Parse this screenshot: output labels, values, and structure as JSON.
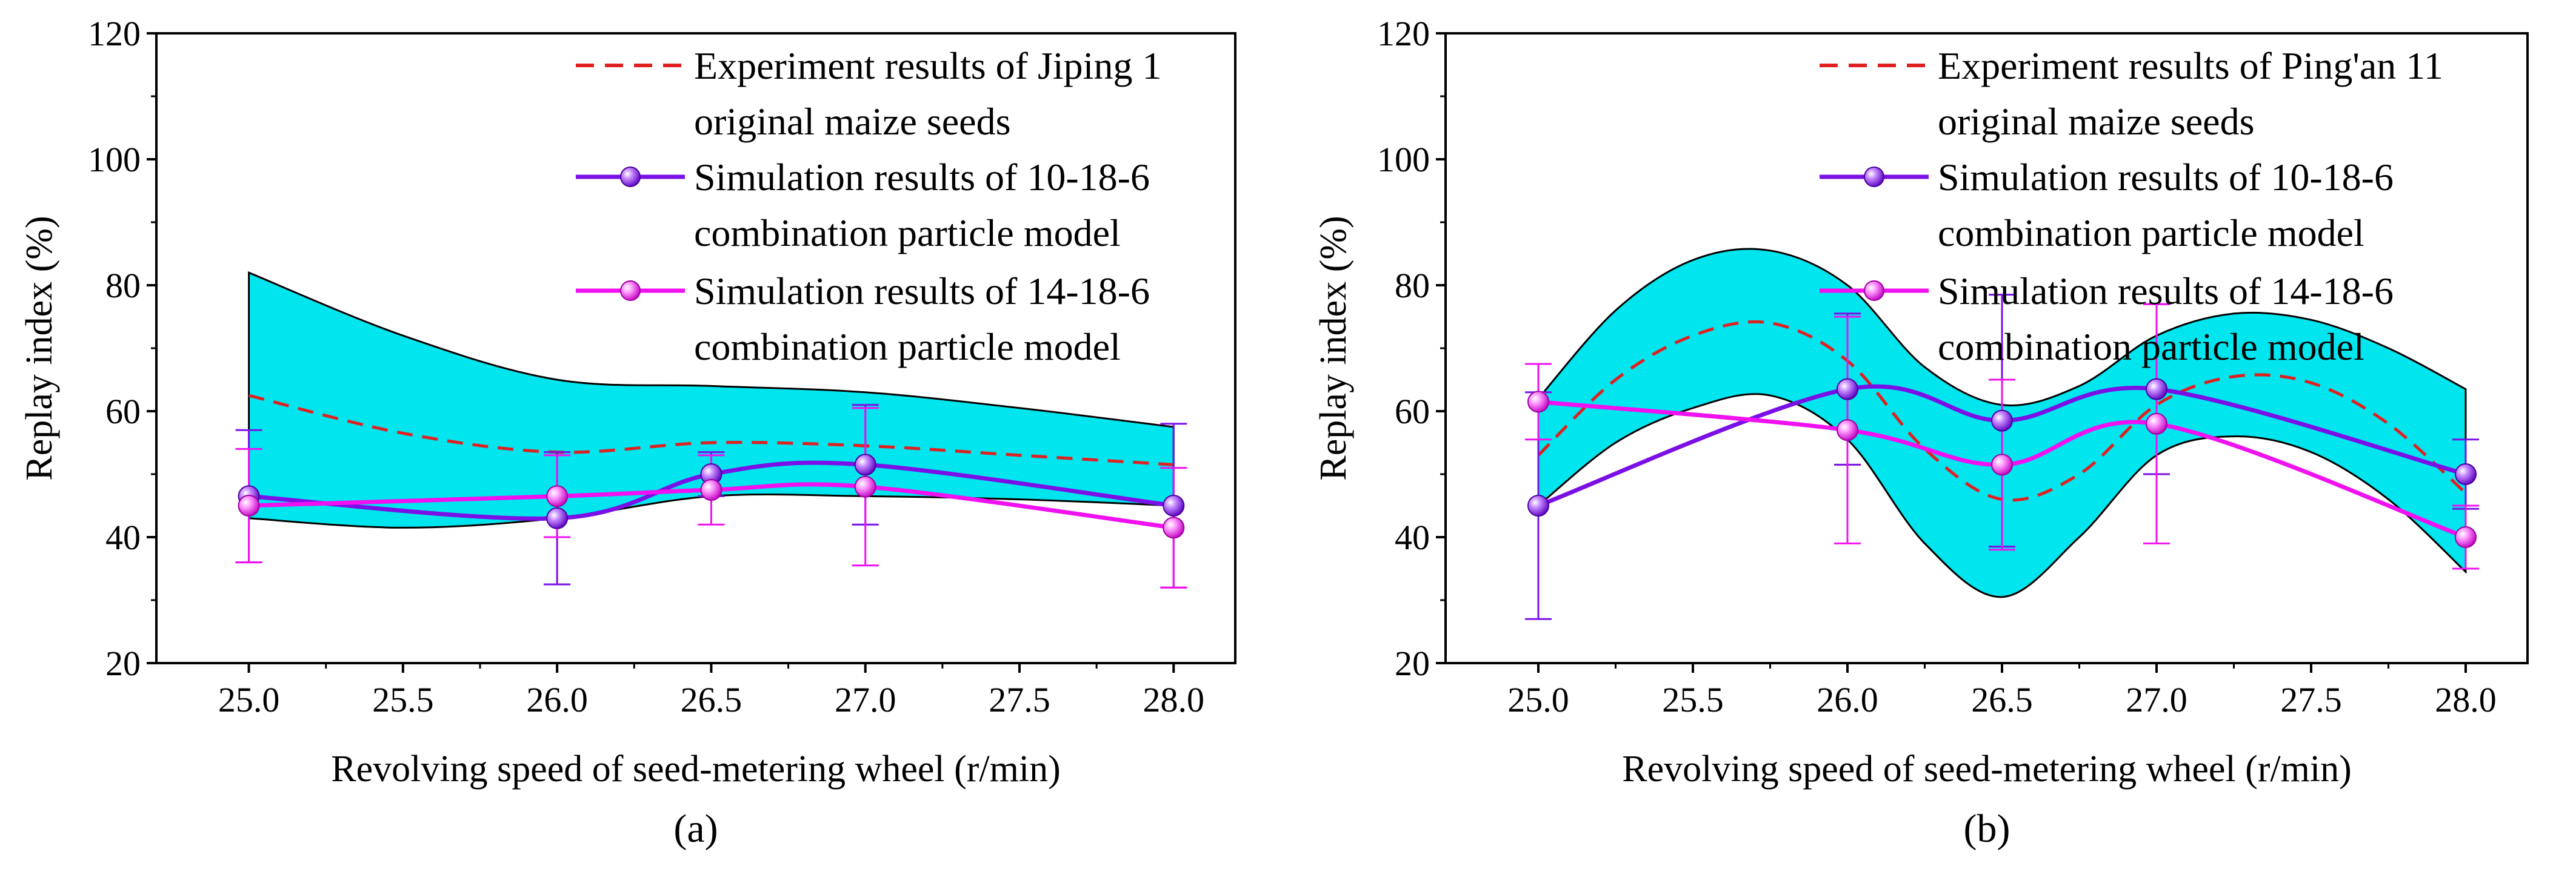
{
  "colors": {
    "band": "#00E5EE",
    "experiment": "#E02020",
    "sim_10_18_6": "#7A10E6",
    "sim_14_18_6": "#F010F0"
  },
  "chart_data": [
    {
      "type": "line",
      "panel_label": "(a)",
      "xlabel": "Revolving speed of seed-metering wheel (r/min)",
      "ylabel": "Replay index (%)",
      "xlim": [
        24.7,
        28.2
      ],
      "ylim": [
        20,
        120
      ],
      "x_ticks": [
        "25.0",
        "25.5",
        "26.0",
        "26.5",
        "27.0",
        "27.5",
        "28.0"
      ],
      "y_ticks": [
        "20",
        "40",
        "60",
        "80",
        "100",
        "120"
      ],
      "legend": [
        "Experiment results of Jiping 1",
        "original maize seeds",
        "Simulation results of 10-18-6",
        "combination particle model",
        "Simulation results of 14-18-6",
        "combination particle model"
      ],
      "band": {
        "x": [
          25.0,
          25.5,
          26.0,
          26.5,
          27.0,
          27.5,
          28.0
        ],
        "upper": [
          82,
          72,
          65,
          64,
          63,
          60.5,
          57.5
        ],
        "lower": [
          43,
          41.5,
          43,
          46.5,
          46.5,
          46,
          45
        ]
      },
      "series": [
        {
          "name": "experiment",
          "x": [
            25.0,
            25.5,
            26.0,
            26.5,
            27.0,
            27.5,
            28.0
          ],
          "values": [
            62.5,
            56.5,
            53.5,
            55,
            54.5,
            53,
            51.5
          ]
        },
        {
          "name": "sim_10_18_6",
          "x": [
            25.0,
            26.0,
            26.5,
            27.0,
            28.0
          ],
          "values": [
            46.5,
            43,
            50,
            51.5,
            45
          ],
          "errors": [
            10.5,
            10.5,
            3.5,
            9.5,
            13
          ]
        },
        {
          "name": "sim_14_18_6",
          "x": [
            25.0,
            26.0,
            26.5,
            27.0,
            28.0
          ],
          "values": [
            45,
            46.5,
            47.5,
            48,
            41.5
          ],
          "errors": [
            9,
            6.5,
            5.5,
            12.5,
            9.5
          ]
        }
      ]
    },
    {
      "type": "line",
      "panel_label": "(b)",
      "xlabel": "Revolving speed of seed-metering wheel (r/min)",
      "ylabel": "Replay index (%)",
      "xlim": [
        24.7,
        28.2
      ],
      "ylim": [
        20,
        120
      ],
      "x_ticks": [
        "25.0",
        "25.5",
        "26.0",
        "26.5",
        "27.0",
        "27.5",
        "28.0"
      ],
      "y_ticks": [
        "20",
        "40",
        "60",
        "80",
        "100",
        "120"
      ],
      "legend": [
        "Experiment results of Ping'an 11",
        "original maize seeds",
        "Simulation results of 10-18-6",
        "combination particle model",
        "Simulation results of 14-18-6",
        "combination particle model"
      ],
      "band": {
        "x": [
          25.0,
          25.25,
          25.5,
          25.75,
          26.0,
          26.25,
          26.5,
          26.75,
          27.0,
          27.25,
          27.5,
          27.75,
          28.0
        ],
        "upper": [
          62,
          76,
          84,
          85.5,
          80,
          67,
          61,
          64,
          72,
          75.5,
          74.5,
          70,
          63.5
        ],
        "lower": [
          45,
          55,
          60.5,
          62.5,
          55.5,
          39,
          30.5,
          40,
          53,
          56,
          53.5,
          46,
          34.5
        ]
      },
      "series": [
        {
          "name": "experiment",
          "x": [
            25.0,
            25.25,
            25.5,
            25.75,
            26.0,
            26.25,
            26.5,
            26.75,
            27.0,
            27.25,
            27.5,
            27.75,
            28.0
          ],
          "values": [
            53,
            65,
            72,
            74,
            68,
            54,
            46,
            50,
            61,
            65.5,
            64.5,
            58,
            47
          ]
        },
        {
          "name": "sim_10_18_6",
          "x": [
            25.0,
            26.0,
            26.5,
            27.0,
            28.0
          ],
          "values": [
            45,
            63.5,
            58.5,
            63.5,
            50
          ],
          "errors": [
            18,
            12,
            20,
            13.5,
            5.5
          ]
        },
        {
          "name": "sim_14_18_6",
          "x": [
            25.0,
            26.0,
            26.5,
            27.0,
            28.0
          ],
          "values": [
            61.5,
            57,
            51.5,
            58,
            40
          ],
          "errors": [
            6,
            18,
            13.5,
            19,
            5
          ]
        }
      ]
    }
  ]
}
